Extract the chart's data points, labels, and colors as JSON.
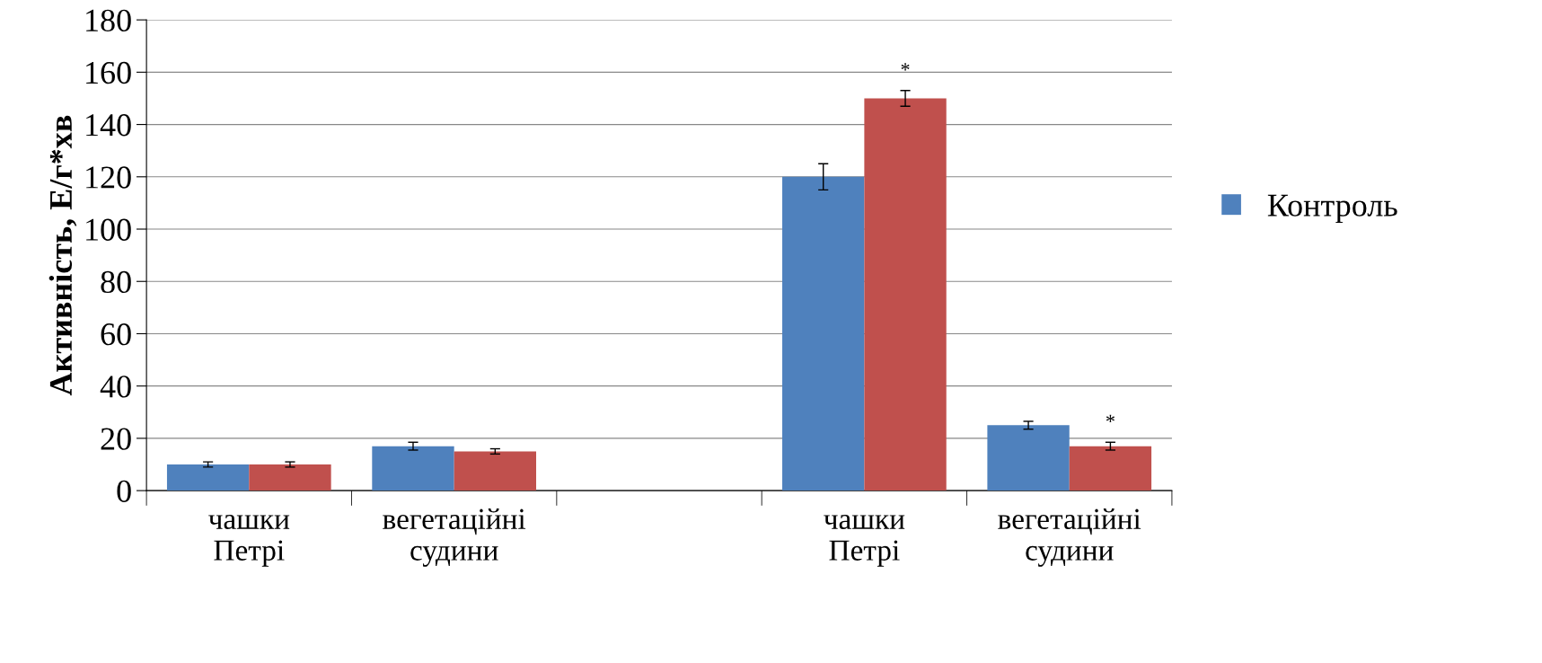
{
  "chart_data": {
    "type": "bar",
    "ylabel": "Активність, Е/г*хв",
    "categories": [
      "чашки\nПетрі",
      "вегетаційні\nсудини",
      null,
      "чашки\nПетрі",
      "вегетаційні\nсудини"
    ],
    "series": [
      {
        "name": "Контроль",
        "color": "#4f81bd",
        "values": [
          10,
          17,
          null,
          120,
          25
        ],
        "errors": [
          1,
          1.5,
          null,
          5,
          1.5
        ]
      },
      {
        "color": "#c0504d",
        "values": [
          10,
          15,
          null,
          150,
          17
        ],
        "errors": [
          1,
          1,
          null,
          3,
          1.5
        ],
        "value_labels": [
          null,
          null,
          null,
          "*",
          "*"
        ]
      }
    ],
    "ylim": [
      0,
      180
    ],
    "yticks": [
      0,
      20,
      40,
      60,
      80,
      100,
      120,
      140,
      160,
      180
    ],
    "grid": "y",
    "legend": "right"
  }
}
